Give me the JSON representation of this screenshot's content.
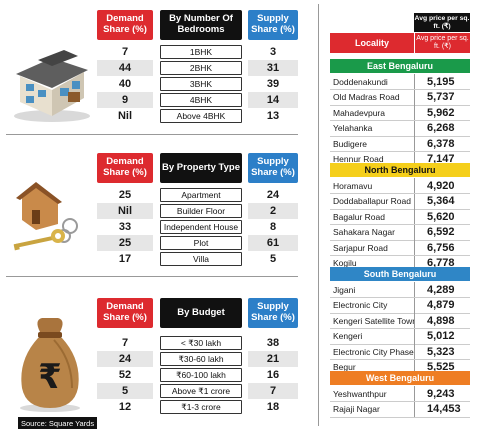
{
  "sections": [
    {
      "headers": {
        "demand": "Demand Share (%)",
        "middle": "By Number Of Bedrooms",
        "supply": "Supply Share (%)"
      },
      "rows": [
        {
          "demand": "7",
          "label": "1BHK",
          "supply": "3"
        },
        {
          "demand": "44",
          "label": "2BHK",
          "supply": "31"
        },
        {
          "demand": "40",
          "label": "3BHK",
          "supply": "39"
        },
        {
          "demand": "9",
          "label": "4BHK",
          "supply": "14"
        },
        {
          "demand": "Nil",
          "label": "Above 4BHK",
          "supply": "13"
        }
      ]
    },
    {
      "headers": {
        "demand": "Demand Share (%)",
        "middle": "By Property Type",
        "supply": "Supply Share (%)"
      },
      "rows": [
        {
          "demand": "25",
          "label": "Apartment",
          "supply": "24"
        },
        {
          "demand": "Nil",
          "label": "Builder Floor",
          "supply": "2"
        },
        {
          "demand": "33",
          "label": "Independent House",
          "supply": "8"
        },
        {
          "demand": "25",
          "label": "Plot",
          "supply": "61"
        },
        {
          "demand": "17",
          "label": "Villa",
          "supply": "5"
        }
      ]
    },
    {
      "headers": {
        "demand": "Demand Share (%)",
        "middle": "By Budget",
        "supply": "Supply Share (%)"
      },
      "rows": [
        {
          "demand": "7",
          "label": "< ₹30 lakh",
          "supply": "38"
        },
        {
          "demand": "24",
          "label": "₹30-60 lakh",
          "supply": "21"
        },
        {
          "demand": "52",
          "label": "₹60-100 lakh",
          "supply": "16"
        },
        {
          "demand": "5",
          "label": "Above ₹1 crore",
          "supply": "7"
        },
        {
          "demand": "12",
          "label": "₹1-3 crore",
          "supply": "18"
        }
      ]
    }
  ],
  "price_table": {
    "header_small": "Avg price per sq. ft. (₹)",
    "header_locality": "Locality",
    "header_price": "Avg price per sq. ft. (₹)",
    "zones": [
      {
        "name": "East Bengaluru",
        "bg": "#1a9a4a",
        "fg": "#ffffff",
        "rows": [
          {
            "loc": "Doddenakundi",
            "price": "5,195"
          },
          {
            "loc": "Old Madras Road",
            "price": "5,737"
          },
          {
            "loc": "Mahadevpura",
            "price": "5,962"
          },
          {
            "loc": "Yelahanka",
            "price": "6,268"
          },
          {
            "loc": "Budigere",
            "price": "6,378"
          },
          {
            "loc": "Hennur Road",
            "price": "7,147"
          }
        ]
      },
      {
        "name": "North Bengaluru",
        "bg": "#f5cf1b",
        "fg": "#111111",
        "rows": [
          {
            "loc": "Horamavu",
            "price": "4,920"
          },
          {
            "loc": "Doddaballapur Road",
            "price": "5,364"
          },
          {
            "loc": "Bagalur Road",
            "price": "5,620"
          },
          {
            "loc": "Sahakara Nagar",
            "price": "6,592"
          },
          {
            "loc": "Sarjapur Road",
            "price": "6,756"
          },
          {
            "loc": "Kogilu",
            "price": "6,778"
          }
        ]
      },
      {
        "name": "South Bengaluru",
        "bg": "#2f86c6",
        "fg": "#ffffff",
        "rows": [
          {
            "loc": "Jigani",
            "price": "4,289"
          },
          {
            "loc": "Electronic City",
            "price": "4,879"
          },
          {
            "loc": "Kengeri Satellite Town",
            "price": "4,898"
          },
          {
            "loc": "Kengeri",
            "price": "5,012"
          },
          {
            "loc": "Electronic City Phase I",
            "price": "5,323"
          },
          {
            "loc": "Begur",
            "price": "5,525"
          }
        ]
      },
      {
        "name": "West Bengaluru",
        "bg": "#ee7d23",
        "fg": "#ffffff",
        "rows": [
          {
            "loc": "Yeshwanthpur",
            "price": "9,243"
          },
          {
            "loc": "Rajaji Nagar",
            "price": "14,453"
          }
        ]
      }
    ]
  },
  "source": "Source: Square Yards",
  "colors": {
    "demand_header": "#dd2a2f",
    "supply_header": "#2c7fc8",
    "band": "#e6e6e6"
  },
  "icons": [
    "house-model-icon",
    "house-key-icon",
    "money-bag-icon"
  ]
}
